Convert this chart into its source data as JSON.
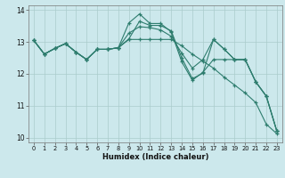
{
  "xlabel": "Humidex (Indice chaleur)",
  "ylabel": "",
  "bg_color": "#cce8ec",
  "line_color": "#2e7d6e",
  "grid_color": "#aacccc",
  "xlim": [
    -0.5,
    23.5
  ],
  "ylim": [
    9.85,
    14.15
  ],
  "yticks": [
    10,
    11,
    12,
    13,
    14
  ],
  "xticks": [
    0,
    1,
    2,
    3,
    4,
    5,
    6,
    7,
    8,
    9,
    10,
    11,
    12,
    13,
    14,
    15,
    16,
    17,
    18,
    19,
    20,
    21,
    22,
    23
  ],
  "lines": [
    [
      13.05,
      12.62,
      12.8,
      12.95,
      12.68,
      12.45,
      12.77,
      12.77,
      12.82,
      13.6,
      13.88,
      13.58,
      13.58,
      13.32,
      12.38,
      11.8,
      12.05,
      12.45,
      12.45,
      12.45,
      12.45,
      11.75,
      11.3,
      10.2
    ],
    [
      13.05,
      12.62,
      12.8,
      12.95,
      12.68,
      12.45,
      12.77,
      12.77,
      12.82,
      13.1,
      13.65,
      13.52,
      13.52,
      13.35,
      12.5,
      11.85,
      12.02,
      13.08,
      12.78,
      12.45,
      12.45,
      11.75,
      11.3,
      10.2
    ],
    [
      13.05,
      12.62,
      12.8,
      12.95,
      12.68,
      12.45,
      12.77,
      12.77,
      12.82,
      13.28,
      13.48,
      13.45,
      13.38,
      13.18,
      12.65,
      12.18,
      12.45,
      13.08,
      12.78,
      12.45,
      12.45,
      11.75,
      11.3,
      10.2
    ],
    [
      13.05,
      12.62,
      12.8,
      12.95,
      12.68,
      12.45,
      12.77,
      12.77,
      12.82,
      13.08,
      13.08,
      13.08,
      13.08,
      13.08,
      12.88,
      12.62,
      12.4,
      12.18,
      11.9,
      11.65,
      11.4,
      11.1,
      10.42,
      10.12
    ]
  ]
}
